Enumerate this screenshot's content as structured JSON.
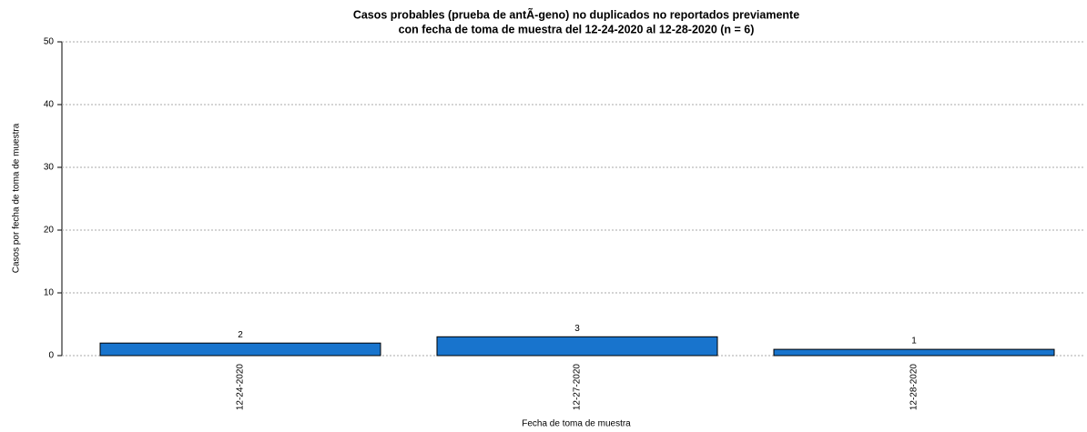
{
  "chart_data": {
    "type": "bar",
    "title": [
      "Casos probables (prueba de antÃ-geno) no duplicados no reportados previamente",
      "con fecha de toma de muestra del 12-24-2020 al 12-28-2020 (n = 6)"
    ],
    "x_label": "Fecha de toma de muestra",
    "y_label": "Casos por fecha de toma de muestra",
    "categories": [
      "12-24-2020",
      "12-27-2020",
      "12-28-2020"
    ],
    "values": [
      2,
      3,
      1
    ],
    "color": "#1874cd",
    "ylim": [
      0,
      50
    ],
    "yticks": [
      0,
      10,
      20,
      30,
      40,
      50
    ],
    "grid": true
  }
}
